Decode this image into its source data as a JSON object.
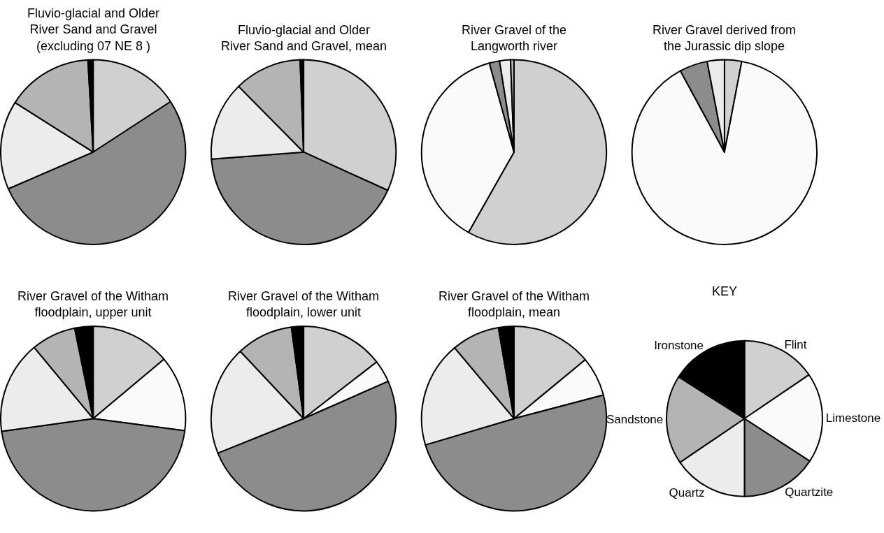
{
  "chart_data": [
    {
      "type": "pie",
      "title": "Fluvio-glacial and Older River Sand and Gravel (excluding 07 NE 8 )",
      "categories": [
        null,
        null,
        null,
        null,
        null
      ],
      "values": [
        15.8,
        52.7,
        15.5,
        15.1,
        0.9
      ],
      "colors": [
        "#d0d0d0",
        "#8c8c8c",
        "#ececec",
        "#b4b4b4",
        "#000000"
      ]
    },
    {
      "type": "pie",
      "title": "Fluvio-glacial and Older River Sand and Gravel, mean",
      "categories": [
        null,
        null,
        null,
        null,
        null
      ],
      "values": [
        31.8,
        42,
        13.8,
        11.8,
        0.6
      ],
      "colors": [
        "#d0d0d0",
        "#8c8c8c",
        "#ececec",
        "#b4b4b4",
        "#000000"
      ]
    },
    {
      "type": "pie",
      "title": "River Gravel of the Langworth river",
      "categories": [
        null,
        null,
        null,
        null,
        null
      ],
      "values": [
        58.2,
        37.5,
        1.8,
        1.9,
        0.6
      ],
      "colors": [
        "#d0d0d0",
        "#fafafa",
        "#8c8c8c",
        "#ececec",
        "#b4b4b4"
      ]
    },
    {
      "type": "pie",
      "title": "River Gravel derived from the Jurassic dip slope",
      "categories": [
        null,
        null,
        null,
        null
      ],
      "values": [
        3.0,
        89.1,
        4.9,
        3.0
      ],
      "colors": [
        "#d0d0d0",
        "#fafafa",
        "#8c8c8c",
        "#ececec"
      ]
    },
    {
      "type": "pie",
      "title": "River Gravel of the Witham floodplain, upper unit",
      "categories": [
        null,
        null,
        null,
        null,
        null,
        null
      ],
      "values": [
        13.9,
        13.2,
        45.7,
        16.2,
        7.8,
        3.2
      ],
      "colors": [
        "#d0d0d0",
        "#fafafa",
        "#8c8c8c",
        "#ececec",
        "#b4b4b4",
        "#000000"
      ]
    },
    {
      "type": "pie",
      "title": "River Gravel of the Witham floodplain, lower unit",
      "categories": [
        null,
        null,
        null,
        null,
        null,
        null
      ],
      "values": [
        14.5,
        3.9,
        50.5,
        19.1,
        9.9,
        2.1
      ],
      "colors": [
        "#d0d0d0",
        "#fafafa",
        "#8c8c8c",
        "#ececec",
        "#b4b4b4",
        "#000000"
      ]
    },
    {
      "type": "pie",
      "title": "River Gravel of the Witham floodplain, mean",
      "categories": [
        null,
        null,
        null,
        null,
        null,
        null
      ],
      "values": [
        14.0,
        6.9,
        49.5,
        18.5,
        8.4,
        2.7
      ],
      "colors": [
        "#d0d0d0",
        "#fafafa",
        "#8c8c8c",
        "#ececec",
        "#b4b4b4",
        "#000000"
      ]
    },
    {
      "type": "pie",
      "title": "KEY",
      "categories": [
        "Flint",
        "Limestone",
        "Quartzite",
        "Quartz",
        "Sandstone",
        "Ironstone"
      ],
      "values": [
        15.5,
        18.7,
        15.8,
        15.5,
        18.5,
        16.0
      ],
      "colors": [
        "#d0d0d0",
        "#fafafa",
        "#8c8c8c",
        "#ececec",
        "#b4b4b4",
        "#000000"
      ]
    }
  ]
}
